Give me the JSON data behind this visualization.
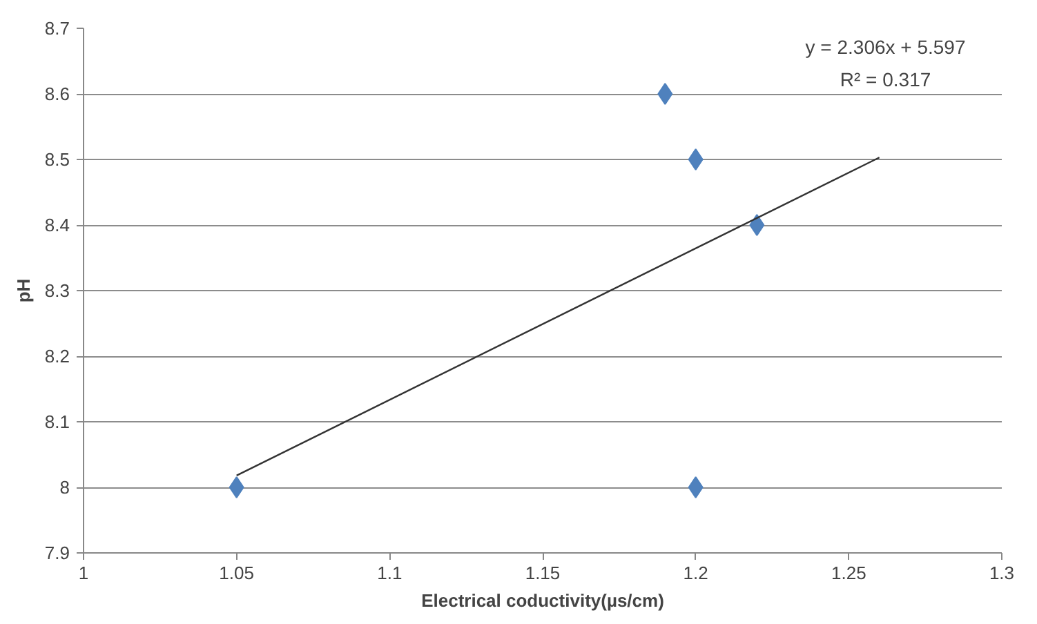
{
  "chart_data": {
    "type": "scatter",
    "xlabel": "Electrical coductivity(µs/cm)",
    "ylabel": "pH",
    "xlim": [
      1,
      1.3
    ],
    "xticks": [
      1,
      1.05,
      1.1,
      1.15,
      1.2,
      1.25,
      1.3
    ],
    "ylim": [
      7.9,
      8.7
    ],
    "yticks": [
      7.9,
      8,
      8.1,
      8.2,
      8.3,
      8.4,
      8.5,
      8.6,
      8.7
    ],
    "grid": "y",
    "marker": "diamond",
    "series": [
      {
        "color": "#4f81bd",
        "x": [
          1.05,
          1.19,
          1.2,
          1.22,
          1.2
        ],
        "values": [
          8.0,
          8.6,
          8.5,
          8.4,
          8.0
        ]
      },
      {
        "type": "line",
        "color": "#333333",
        "marker": "none",
        "x": [
          1.05,
          1.26
        ],
        "values": [
          8.018,
          8.503
        ]
      }
    ],
    "annotations": [
      "y = 2.306x + 5.597",
      "R² = 0.317"
    ]
  }
}
